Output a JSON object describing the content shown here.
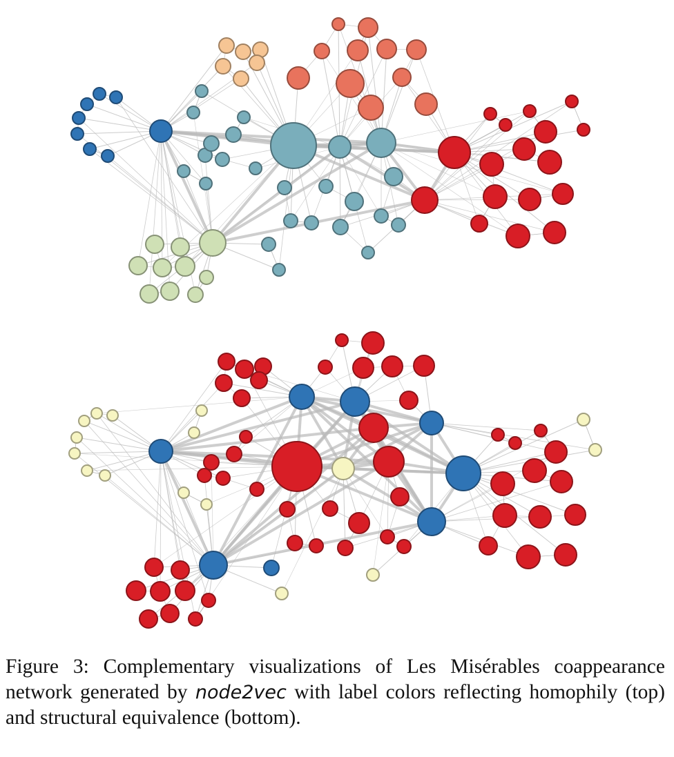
{
  "caption": {
    "prefix": "Figure 3: Complementary visualizations of Les Misérables coappearance network generated by ",
    "method": "node2vec",
    "suffix": " with label colors reflecting homophily (top) and structural equivalence (bottom)."
  },
  "palette": {
    "top": {
      "blue": "#2f74b5",
      "orange": "#f6c594",
      "salmon": "#e8735d",
      "teal": "#7aaebb",
      "red": "#d81e26",
      "green": "#cfe0b5"
    },
    "bottom": {
      "red": "#d81e26",
      "blue": "#2f74b5",
      "yellow": "#f7f5c2"
    }
  },
  "panels": [
    {
      "id": "homophily",
      "caption_label": "top"
    },
    {
      "id": "structural-equivalence",
      "caption_label": "bottom"
    }
  ]
}
